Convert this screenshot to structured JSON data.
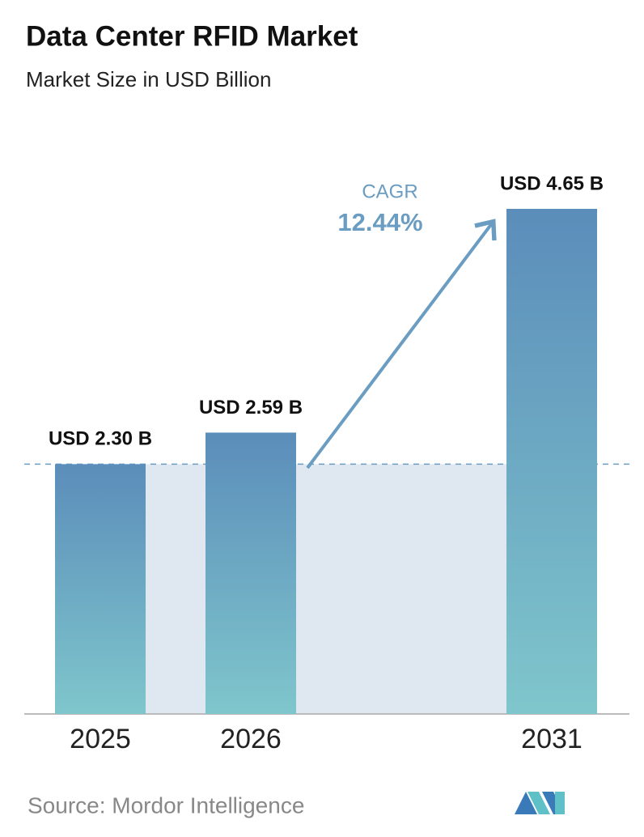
{
  "chart_data": {
    "type": "bar",
    "title": "Data Center RFID Market",
    "subtitle": "Market Size in USD Billion",
    "categories": [
      "2025",
      "2026",
      "2031"
    ],
    "values": [
      2.3,
      2.59,
      4.65
    ],
    "value_labels": [
      "USD 2.30 B",
      "USD 2.59 B",
      "USD 4.65 B"
    ],
    "color": "#5b8dba",
    "annotation": {
      "label": "CAGR",
      "value": "12.44%"
    },
    "source": "Source:  Mordor Intelligence"
  }
}
